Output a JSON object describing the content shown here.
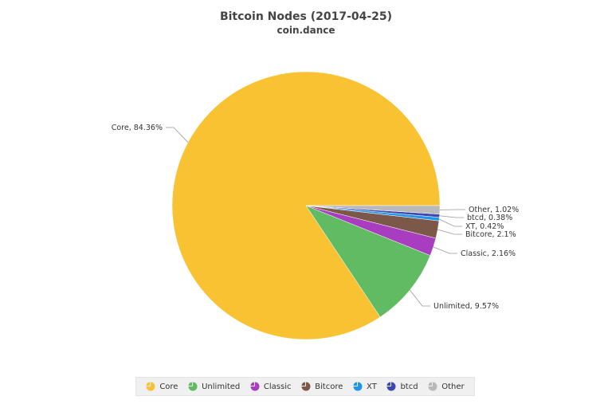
{
  "chart_data": {
    "type": "pie",
    "title": "Bitcoin Nodes (2017-04-25)",
    "subtitle": "coin.dance",
    "legend_position": "bottom",
    "slices": [
      {
        "name": "Core",
        "value": 84.36,
        "label": "Core, 84.36%",
        "color": "#f8c232"
      },
      {
        "name": "Unlimited",
        "value": 9.57,
        "label": "Unlimited, 9.57%",
        "color": "#60bb62"
      },
      {
        "name": "Classic",
        "value": 2.16,
        "label": "Classic, 2.16%",
        "color": "#a83ebf"
      },
      {
        "name": "Bitcore",
        "value": 2.1,
        "label": "Bitcore, 2.1%",
        "color": "#7b5848"
      },
      {
        "name": "XT",
        "value": 0.42,
        "label": "XT, 0.42%",
        "color": "#2196e8"
      },
      {
        "name": "btcd",
        "value": 0.38,
        "label": "btcd, 0.38%",
        "color": "#3d49b0"
      },
      {
        "name": "Other",
        "value": 1.02,
        "label": "Other, 1.02%",
        "color": "#b9b9b9"
      }
    ]
  }
}
